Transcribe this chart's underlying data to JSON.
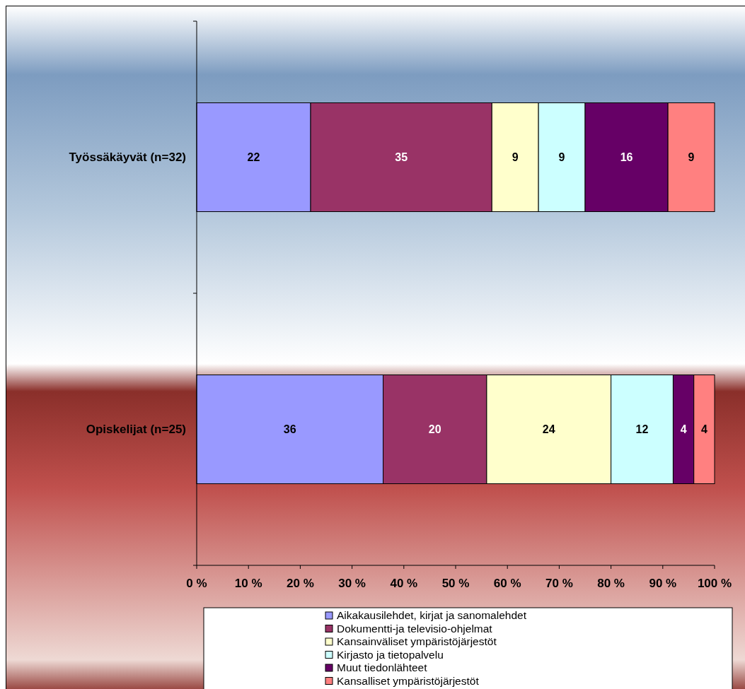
{
  "chart_data": {
    "type": "bar",
    "orientation": "horizontal",
    "stacked": true,
    "categories": [
      "Työssäkäyvät (n=32)",
      "Opiskelijat (n=25)"
    ],
    "series": [
      {
        "name": "Aikakausilehdet, kirjat ja sanomalehdet",
        "color": "#9999ff",
        "values": [
          22,
          36
        ]
      },
      {
        "name": "Dokumentti-ja televisio-ohjelmat",
        "color": "#993366",
        "values": [
          35,
          20
        ]
      },
      {
        "name": "Kansainväliset ympäristöjärjestöt",
        "color": "#ffffcc",
        "values": [
          9,
          24
        ]
      },
      {
        "name": "Kirjasto ja tietopalvelu",
        "color": "#ccffff",
        "values": [
          9,
          12
        ]
      },
      {
        "name": "Muut tiedonlähteet",
        "color": "#660066",
        "values": [
          16,
          4
        ]
      },
      {
        "name": "Kansalliset ympäristöjärjestöt",
        "color": "#ff8080",
        "values": [
          9,
          4
        ]
      }
    ],
    "xlim": [
      0,
      100
    ],
    "xticks": [
      {
        "value": 0,
        "label": "0 %"
      },
      {
        "value": 10,
        "label": "10 %"
      },
      {
        "value": 20,
        "label": "20 %"
      },
      {
        "value": 30,
        "label": "30 %"
      },
      {
        "value": 40,
        "label": "40 %"
      },
      {
        "value": 50,
        "label": "50 %"
      },
      {
        "value": 60,
        "label": "60 %"
      },
      {
        "value": 70,
        "label": "70 %"
      },
      {
        "value": 80,
        "label": "80 %"
      },
      {
        "value": 90,
        "label": "90 %"
      },
      {
        "value": 100,
        "label": "100 %"
      }
    ],
    "data_labels": true,
    "legend": "bottom"
  }
}
